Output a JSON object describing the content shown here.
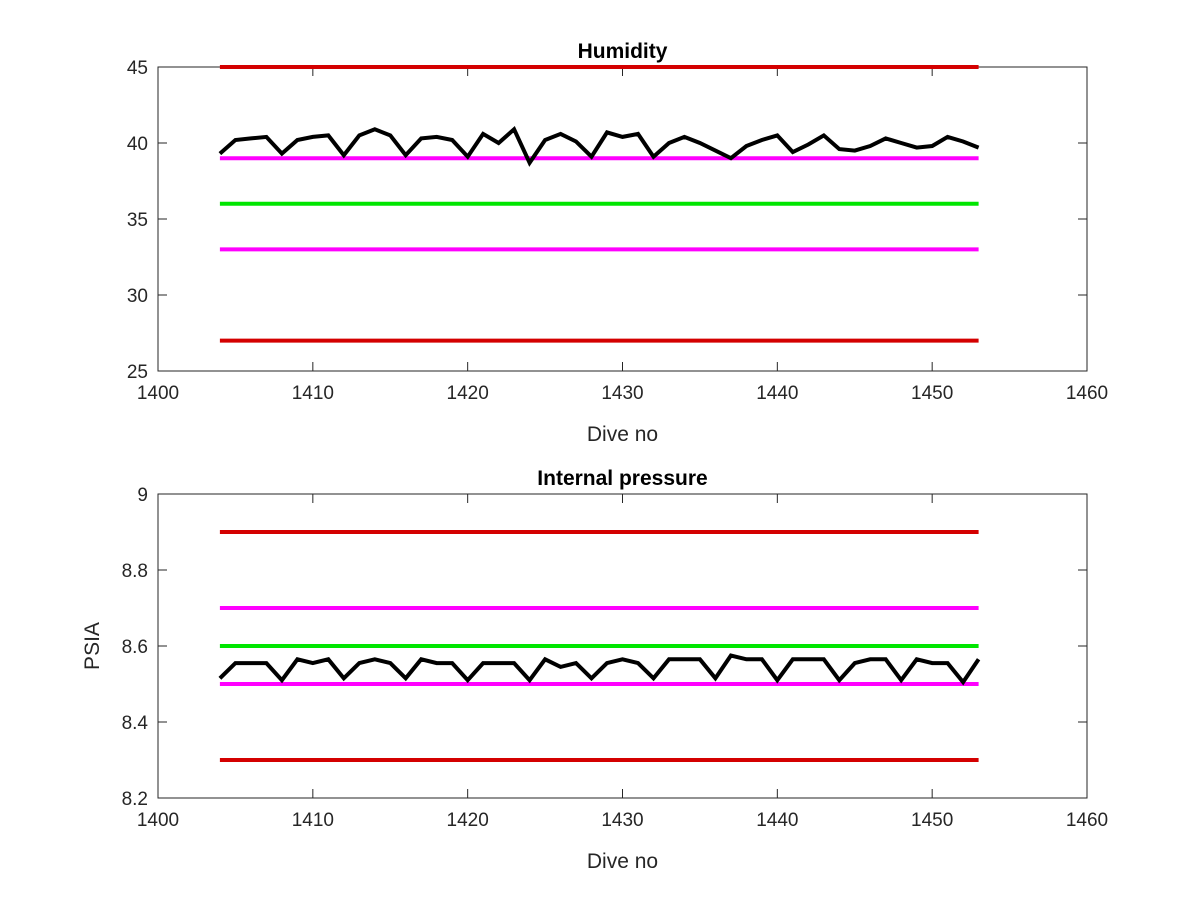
{
  "chart_data": [
    {
      "type": "line",
      "title": "Humidity",
      "xlabel": "Dive no",
      "ylabel": "",
      "xlim": [
        1400,
        1460
      ],
      "ylim": [
        25,
        45
      ],
      "xticks": [
        1400,
        1410,
        1420,
        1430,
        1440,
        1450,
        1460
      ],
      "yticks": [
        25,
        30,
        35,
        40,
        45
      ],
      "grid": false,
      "series": [
        {
          "color": "#000000",
          "x": [
            1404,
            1405,
            1406,
            1407,
            1408,
            1409,
            1410,
            1411,
            1412,
            1413,
            1414,
            1415,
            1416,
            1417,
            1418,
            1419,
            1420,
            1421,
            1422,
            1423,
            1424,
            1425,
            1426,
            1427,
            1428,
            1429,
            1430,
            1431,
            1432,
            1433,
            1434,
            1435,
            1436,
            1437,
            1438,
            1439,
            1440,
            1441,
            1442,
            1443,
            1444,
            1445,
            1446,
            1447,
            1448,
            1449,
            1450,
            1451,
            1452,
            1453
          ],
          "y": [
            39.3,
            40.2,
            40.3,
            40.4,
            39.3,
            40.2,
            40.4,
            40.5,
            39.2,
            40.5,
            40.9,
            40.5,
            39.2,
            40.3,
            40.4,
            40.2,
            39.1,
            40.6,
            40.0,
            40.9,
            38.7,
            40.2,
            40.6,
            40.1,
            39.1,
            40.7,
            40.4,
            40.6,
            39.1,
            40.0,
            40.4,
            40.0,
            39.5,
            39.0,
            39.8,
            40.2,
            40.5,
            39.4,
            39.9,
            40.5,
            39.6,
            39.5,
            39.8,
            40.3,
            40.0,
            39.7,
            39.8,
            40.4,
            40.1,
            39.7
          ]
        },
        {
          "color": "#d40000",
          "x": [
            1404,
            1453
          ],
          "y": [
            45,
            45
          ]
        },
        {
          "color": "#ff00ff",
          "x": [
            1404,
            1453
          ],
          "y": [
            39,
            39
          ]
        },
        {
          "color": "#00e600",
          "x": [
            1404,
            1453
          ],
          "y": [
            36,
            36
          ]
        },
        {
          "color": "#ff00ff",
          "x": [
            1404,
            1453
          ],
          "y": [
            33,
            33
          ]
        },
        {
          "color": "#d40000",
          "x": [
            1404,
            1453
          ],
          "y": [
            27,
            27
          ]
        }
      ]
    },
    {
      "type": "line",
      "title": "Internal pressure",
      "xlabel": "Dive no",
      "ylabel": "PSIA",
      "xlim": [
        1400,
        1460
      ],
      "ylim": [
        8.2,
        9
      ],
      "xticks": [
        1400,
        1410,
        1420,
        1430,
        1440,
        1450,
        1460
      ],
      "yticks": [
        8.2,
        8.4,
        8.6,
        8.8,
        9
      ],
      "grid": false,
      "series": [
        {
          "color": "#000000",
          "x": [
            1404,
            1405,
            1406,
            1407,
            1408,
            1409,
            1410,
            1411,
            1412,
            1413,
            1414,
            1415,
            1416,
            1417,
            1418,
            1419,
            1420,
            1421,
            1422,
            1423,
            1424,
            1425,
            1426,
            1427,
            1428,
            1429,
            1430,
            1431,
            1432,
            1433,
            1434,
            1435,
            1436,
            1437,
            1438,
            1439,
            1440,
            1441,
            1442,
            1443,
            1444,
            1445,
            1446,
            1447,
            1448,
            1449,
            1450,
            1451,
            1452,
            1453
          ],
          "y": [
            8.515,
            8.555,
            8.555,
            8.555,
            8.51,
            8.565,
            8.555,
            8.565,
            8.515,
            8.555,
            8.565,
            8.555,
            8.515,
            8.565,
            8.555,
            8.555,
            8.51,
            8.555,
            8.555,
            8.555,
            8.51,
            8.565,
            8.545,
            8.555,
            8.515,
            8.555,
            8.565,
            8.555,
            8.515,
            8.565,
            8.565,
            8.565,
            8.515,
            8.575,
            8.565,
            8.565,
            8.51,
            8.565,
            8.565,
            8.565,
            8.51,
            8.555,
            8.565,
            8.565,
            8.51,
            8.565,
            8.555,
            8.555,
            8.505,
            8.565
          ]
        },
        {
          "color": "#d40000",
          "x": [
            1404,
            1453
          ],
          "y": [
            8.9,
            8.9
          ]
        },
        {
          "color": "#ff00ff",
          "x": [
            1404,
            1453
          ],
          "y": [
            8.7,
            8.7
          ]
        },
        {
          "color": "#00e600",
          "x": [
            1404,
            1453
          ],
          "y": [
            8.6,
            8.6
          ]
        },
        {
          "color": "#ff00ff",
          "x": [
            1404,
            1453
          ],
          "y": [
            8.5,
            8.5
          ]
        },
        {
          "color": "#d40000",
          "x": [
            1404,
            1453
          ],
          "y": [
            8.3,
            8.3
          ]
        }
      ]
    }
  ]
}
